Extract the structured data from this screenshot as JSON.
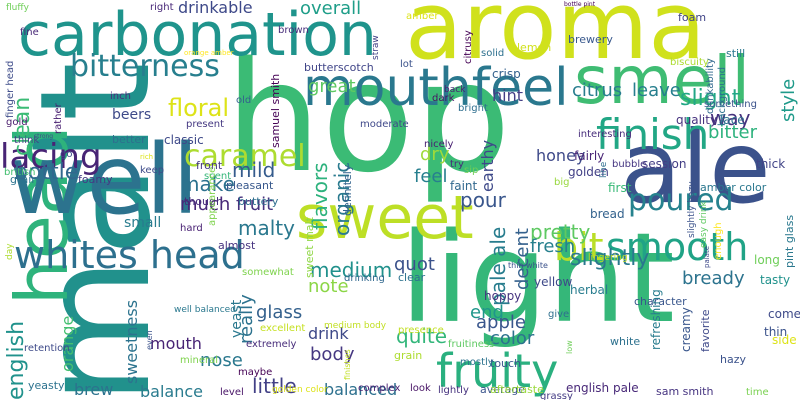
{
  "words": [
    {
      "text": "hop",
      "color": "#3bbb75"
    },
    {
      "text": "malt",
      "color": "#21918c"
    },
    {
      "text": "light",
      "color": "#35b779"
    },
    {
      "text": "head",
      "color": "#2eb37c"
    },
    {
      "text": "aroma",
      "color": "#d0e11c"
    },
    {
      "text": "well",
      "color": "#2c738e"
    },
    {
      "text": "carbonation",
      "color": "#1f948c"
    },
    {
      "text": "smell",
      "color": "#3fbc73"
    },
    {
      "text": "ale",
      "color": "#3b528b"
    },
    {
      "text": "mouthfeel",
      "color": "#2a788e"
    },
    {
      "text": "sweet",
      "color": "#bddf26"
    },
    {
      "text": "finish",
      "color": "#22a785"
    },
    {
      "text": "fruity",
      "color": "#2ab07f"
    },
    {
      "text": "whites head",
      "color": "#2d708e"
    },
    {
      "text": "smooth",
      "color": "#20a386"
    },
    {
      "text": "bitterness",
      "color": "#277f8e"
    },
    {
      "text": "lacing",
      "color": "#482475"
    },
    {
      "text": "caramel",
      "color": "#addc30"
    },
    {
      "text": "bit",
      "color": "#bade28"
    },
    {
      "text": "poured",
      "color": "#26828e"
    },
    {
      "text": "slightly",
      "color": "#2a788e"
    },
    {
      "text": "floral",
      "color": "#dde318"
    },
    {
      "text": "drinkable",
      "color": "#3e4989"
    },
    {
      "text": "overall",
      "color": "#1f9e89"
    },
    {
      "text": "slight",
      "color": "#22a785"
    },
    {
      "text": "way",
      "color": "#46327e"
    },
    {
      "text": "bitter",
      "color": "#2db27d"
    },
    {
      "text": "great",
      "color": "#5ec962"
    },
    {
      "text": "citrus",
      "color": "#287d8e"
    },
    {
      "text": "leave",
      "color": "#277f8e"
    },
    {
      "text": "hint",
      "color": "#433e85"
    },
    {
      "text": "style",
      "color": "#1f9a8a"
    },
    {
      "text": "bottle",
      "color": "#31688e"
    },
    {
      "text": "clean",
      "color": "#3bbb75"
    },
    {
      "text": "make",
      "color": "#2c728e"
    },
    {
      "text": "mild",
      "color": "#365c8d"
    },
    {
      "text": "dry",
      "color": "#9fda3a"
    },
    {
      "text": "feel",
      "color": "#277f8e"
    },
    {
      "text": "flavors",
      "color": "#2db27d"
    },
    {
      "text": "organic",
      "color": "#297a8e"
    },
    {
      "text": "earthy",
      "color": "#3e4989"
    },
    {
      "text": "honey",
      "color": "#3e4989"
    },
    {
      "text": "much",
      "color": "#482878"
    },
    {
      "text": "fruit",
      "color": "#46327e"
    },
    {
      "text": "malty",
      "color": "#2a788e"
    },
    {
      "text": "pour",
      "color": "#39568c"
    },
    {
      "text": "pretty",
      "color": "#5ec962"
    },
    {
      "text": "decent",
      "color": "#34618d"
    },
    {
      "text": "fresh",
      "color": "#27808e"
    },
    {
      "text": "bready",
      "color": "#2c738e"
    },
    {
      "text": "pale ale",
      "color": "#287d8e"
    },
    {
      "text": "medium",
      "color": "#21918c"
    },
    {
      "text": "english",
      "color": "#20928c"
    },
    {
      "text": "note",
      "color": "#8bd646"
    },
    {
      "text": "quot",
      "color": "#3b528b"
    },
    {
      "text": "end",
      "color": "#1f968b"
    },
    {
      "text": "quite",
      "color": "#32b67a"
    },
    {
      "text": "apple",
      "color": "#39568c"
    },
    {
      "text": "color",
      "color": "#2c728e"
    },
    {
      "text": "glass",
      "color": "#34618d"
    },
    {
      "text": "drink",
      "color": "#3e4989"
    },
    {
      "text": "body",
      "color": "#453781"
    },
    {
      "text": "mouth",
      "color": "#482475"
    },
    {
      "text": "nose",
      "color": "#2a788e"
    },
    {
      "text": "really",
      "color": "#2c728e"
    },
    {
      "text": "brew",
      "color": "#2c738e"
    },
    {
      "text": "balance",
      "color": "#297b8e"
    },
    {
      "text": "little",
      "color": "#424086"
    },
    {
      "text": "balanced",
      "color": "#2d708e"
    },
    {
      "text": "sweetness",
      "color": "#2c738e"
    },
    {
      "text": "orange",
      "color": "#44bf70"
    },
    {
      "text": "small",
      "color": "#287c8e"
    },
    {
      "text": "beers",
      "color": "#3e4a89"
    },
    {
      "text": "yeast",
      "color": "#2a788e"
    },
    {
      "text": "session",
      "color": "#433e85"
    },
    {
      "text": "thick",
      "color": "#414487"
    },
    {
      "text": "quality",
      "color": "#46327e"
    },
    {
      "text": "lace",
      "color": "#2c728e"
    },
    {
      "text": "crisp",
      "color": "#34618d"
    },
    {
      "text": "butterscotch",
      "color": "#404588"
    },
    {
      "text": "tasty",
      "color": "#20928c"
    },
    {
      "text": "long",
      "color": "#6ece58"
    },
    {
      "text": "creamy",
      "color": "#39568c"
    },
    {
      "text": "thin",
      "color": "#3b528b"
    },
    {
      "text": "side",
      "color": "#dde318"
    },
    {
      "text": "come",
      "color": "#3e4a89"
    },
    {
      "text": "pint glass",
      "color": "#2a788e"
    },
    {
      "text": "golden",
      "color": "#424086"
    },
    {
      "text": "yellow",
      "color": "#3e4989"
    },
    {
      "text": "herbal",
      "color": "#287d8e"
    },
    {
      "text": "hoppy",
      "color": "#46337f"
    },
    {
      "text": "fairly",
      "color": "#482475"
    },
    {
      "text": "faint",
      "color": "#31688e"
    },
    {
      "text": "front",
      "color": "#453882"
    },
    {
      "text": "pleasant",
      "color": "#38588c"
    },
    {
      "text": "classic",
      "color": "#3e4989"
    },
    {
      "text": "better",
      "color": "#2e6f8e"
    },
    {
      "text": "foamy",
      "color": "#443a83"
    },
    {
      "text": "grainy",
      "color": "#2c738e"
    },
    {
      "text": "scent",
      "color": "#35b779"
    },
    {
      "text": "though",
      "color": "#472d7b"
    },
    {
      "text": "buttery",
      "color": "#2e6e8e"
    },
    {
      "text": "hard",
      "color": "#482173"
    },
    {
      "text": "almost",
      "color": "#46337f"
    },
    {
      "text": "bread",
      "color": "#33628d"
    },
    {
      "text": "first",
      "color": "#38b977"
    },
    {
      "text": "amber color",
      "color": "#2a778e"
    },
    {
      "text": "bubble",
      "color": "#453581"
    },
    {
      "text": "character",
      "color": "#39568c"
    },
    {
      "text": "refreshing",
      "color": "#287c8e"
    },
    {
      "text": "favorite",
      "color": "#3e4989"
    },
    {
      "text": "white",
      "color": "#2d718e"
    },
    {
      "text": "hazy",
      "color": "#3b528b"
    },
    {
      "text": "english pale",
      "color": "#482878"
    },
    {
      "text": "sam smith",
      "color": "#463480"
    },
    {
      "text": "time",
      "color": "#7ad151"
    },
    {
      "text": "average",
      "color": "#3a548c"
    },
    {
      "text": "lightly",
      "color": "#46327e"
    },
    {
      "text": "look",
      "color": "#471365"
    },
    {
      "text": "complex",
      "color": "#482071"
    },
    {
      "text": "touch",
      "color": "#39568c"
    },
    {
      "text": "mostly",
      "color": "#2c728e"
    },
    {
      "text": "give",
      "color": "#2e6f8e"
    },
    {
      "text": "aftertaste",
      "color": "#9bd93c"
    },
    {
      "text": "grassy",
      "color": "#443b84"
    },
    {
      "text": "fruitiness",
      "color": "#5ec962"
    },
    {
      "text": "grain",
      "color": "#addc30"
    },
    {
      "text": "presence",
      "color": "#c2df23"
    },
    {
      "text": "excellent",
      "color": "#c5e021"
    },
    {
      "text": "extremely",
      "color": "#472c7a"
    },
    {
      "text": "mineral",
      "color": "#7fd34e"
    },
    {
      "text": "maybe",
      "color": "#440154"
    },
    {
      "text": "level",
      "color": "#481467"
    },
    {
      "text": "yeasty",
      "color": "#2c728e"
    },
    {
      "text": "retention",
      "color": "#3e4a89"
    },
    {
      "text": "finger head",
      "color": "#3e4c8a"
    },
    {
      "text": "gold",
      "color": "#481a6c"
    },
    {
      "text": "rather",
      "color": "#481f70"
    },
    {
      "text": "think",
      "color": "#424086"
    },
    {
      "text": "go",
      "color": "#3e4989"
    },
    {
      "text": "british",
      "color": "#44bf70"
    },
    {
      "text": "fine",
      "color": "#482878"
    },
    {
      "text": "brown",
      "color": "#472c7a"
    },
    {
      "text": "inch",
      "color": "#472d7b"
    },
    {
      "text": "present",
      "color": "#453882"
    },
    {
      "text": "old",
      "color": "#34618d"
    },
    {
      "text": "keep",
      "color": "#3e4c8a"
    },
    {
      "text": "samuel smith",
      "color": "#440154"
    },
    {
      "text": "sweet malt",
      "color": "#8fd744"
    },
    {
      "text": "definitely",
      "color": "#33638d"
    },
    {
      "text": "drinking",
      "color": "#31688e"
    },
    {
      "text": "clear",
      "color": "#2c728e"
    },
    {
      "text": "moderate",
      "color": "#3f4889"
    },
    {
      "text": "lot",
      "color": "#3b528b"
    },
    {
      "text": "back",
      "color": "#481d6f"
    },
    {
      "text": "dark",
      "color": "#471063"
    },
    {
      "text": "bright",
      "color": "#2e6e8e"
    },
    {
      "text": "nicely",
      "color": "#482071"
    },
    {
      "text": "try",
      "color": "#472c7a"
    },
    {
      "text": "sip",
      "color": "#6ece58"
    },
    {
      "text": "big",
      "color": "#98d83e"
    },
    {
      "text": "interesting",
      "color": "#472d7b"
    },
    {
      "text": "line",
      "color": "#2e6e8e"
    },
    {
      "text": "something",
      "color": "#3b528b"
    },
    {
      "text": "drinkability",
      "color": "#31688e"
    },
    {
      "text": "background",
      "color": "#2c728e"
    },
    {
      "text": "enough",
      "color": "#fde725"
    },
    {
      "text": "easy drink",
      "color": "#5ec962"
    },
    {
      "text": "slightly hazy",
      "color": "#3b528b"
    },
    {
      "text": "palate",
      "color": "#3e4989"
    },
    {
      "text": "still",
      "color": "#2a788e"
    },
    {
      "text": "foam",
      "color": "#414487"
    },
    {
      "text": "brewery",
      "color": "#38588c"
    },
    {
      "text": "solid",
      "color": "#2d708e"
    },
    {
      "text": "lemon",
      "color": "#d0e11c"
    },
    {
      "text": "citrusy",
      "color": "#440154"
    },
    {
      "text": "straw",
      "color": "#424086"
    },
    {
      "text": "amber",
      "color": "#dde318"
    },
    {
      "text": "right",
      "color": "#482878"
    },
    {
      "text": "fluffy",
      "color": "#6ece58"
    },
    {
      "text": "biscuity",
      "color": "#addc30"
    },
    {
      "text": "appearance",
      "color": "#7fd34e"
    },
    {
      "text": "somewhat",
      "color": "#7fd34e"
    },
    {
      "text": "well balanced",
      "color": "#2a788e"
    },
    {
      "text": "even",
      "color": "#3b528b"
    },
    {
      "text": "golden color",
      "color": "#dde318"
    },
    {
      "text": "finishes",
      "color": "#c2df23"
    },
    {
      "text": "medium body",
      "color": "#c2df23"
    },
    {
      "text": "low",
      "color": "#6ece58"
    },
    {
      "text": "lingering",
      "color": "#c2df23"
    },
    {
      "text": "day",
      "color": "#addc30"
    },
    {
      "text": "thin white",
      "color": "#3b528b"
    },
    {
      "text": "orange amber",
      "color": "#fde725"
    },
    {
      "text": "bottle pint",
      "color": "#440154"
    },
    {
      "text": "strong",
      "color": "#3e4989"
    },
    {
      "text": "rich",
      "color": "#dde318"
    }
  ]
}
